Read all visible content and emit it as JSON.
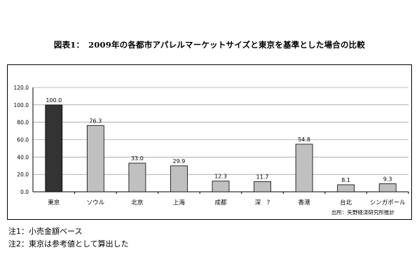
{
  "title": "図表1：　2009年の各都市アパレルマーケットサイズと東京を基準とした場合の比較",
  "source": "出所：矢野経済研究所推計",
  "notes": [
    "注1：小売金額ベース",
    "注2：東京は参考値として算出した"
  ],
  "colors": {
    "highlight": "#333333",
    "bar": "#c0c0c0",
    "axis": "#000000",
    "grid": "#808080"
  },
  "chart_data": {
    "type": "bar",
    "title": "2009年の各都市アパレルマーケットサイズと東京を基準とした場合の比較",
    "categories": [
      "東京",
      "ソウル",
      "北京",
      "上海",
      "成都",
      "深　?",
      "香港",
      "台北",
      "シンガポール"
    ],
    "values": [
      100.0,
      76.3,
      33.0,
      29.9,
      12.3,
      11.7,
      54.8,
      8.1,
      9.3
    ],
    "value_labels": [
      "100.0",
      "76.3",
      "33.0",
      "29.9",
      "12.3",
      "11.7",
      "54.8",
      "8.1",
      "9.3"
    ],
    "yticks": [
      "0.0",
      "20.0",
      "40.0",
      "60.0",
      "80.0",
      "100.0",
      "120.0"
    ],
    "ylim": [
      0,
      120
    ],
    "grid": true,
    "highlight_index": 0
  }
}
